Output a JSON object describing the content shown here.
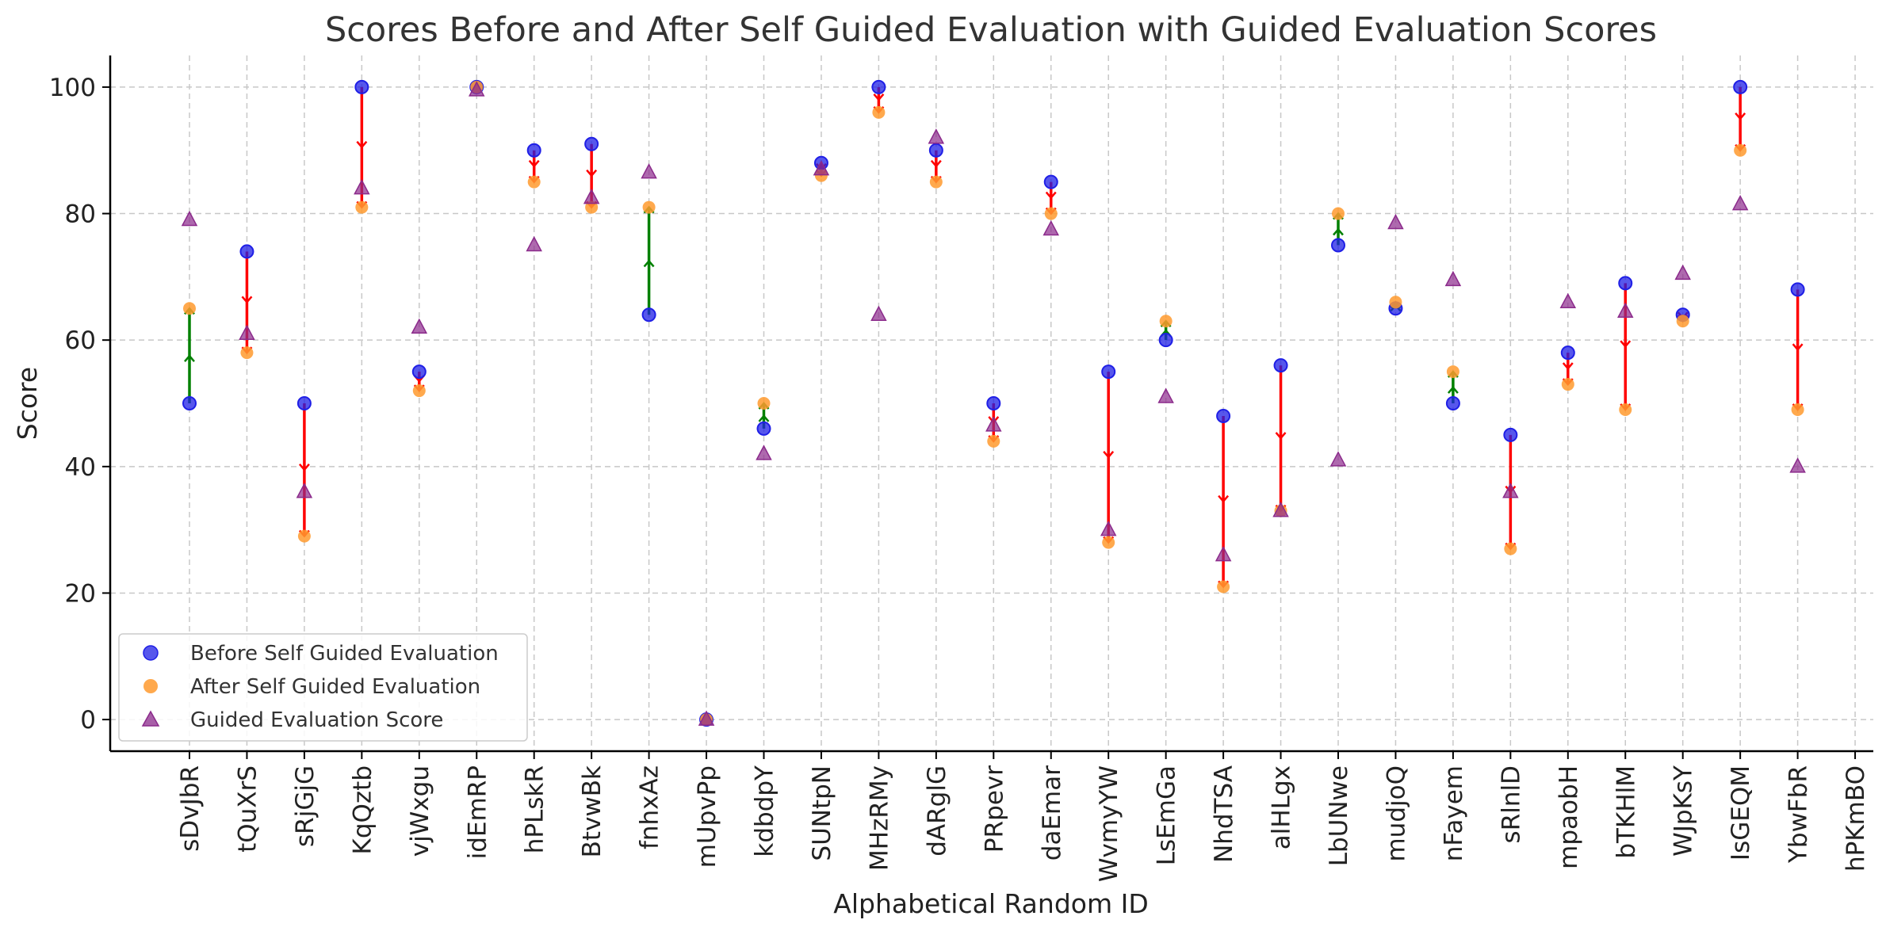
{
  "chart_data": {
    "type": "scatter",
    "title": "Scores Before and After Self Guided Evaluation with Guided Evaluation Scores",
    "xlabel": "Alphabetical Random ID",
    "ylabel": "Score",
    "ylim": [
      -5,
      105
    ],
    "yticks": [
      0,
      20,
      40,
      60,
      80,
      100
    ],
    "grid": true,
    "legend_position": "lower-left",
    "categories": [
      "sDvJbR",
      "tQuXrS",
      "sRjGjG",
      "KqQztb",
      "vjWxgu",
      "idEmRP",
      "hPLskR",
      "BtvwBk",
      "fnhxAz",
      "mUpvPp",
      "kdbdpY",
      "SUNtpN",
      "MHzRMy",
      "dARglG",
      "PRpevr",
      "daEmar",
      "WvmyYW",
      "LsEmGa",
      "NhdTSA",
      "alHLgx",
      "LbUNwe",
      "mudjoQ",
      "nFayem",
      "sRlnlD",
      "mpaobH",
      "bTKHlM",
      "WJpKsY",
      "IsGEQM",
      "YbwFbR",
      "hPKmBO"
    ],
    "series": [
      {
        "name": "Before Self Guided Evaluation",
        "color": "#1f1fe6",
        "marker": "circle",
        "values": [
          50,
          74,
          50,
          100,
          55,
          100,
          90,
          91,
          64,
          0,
          46,
          88,
          100,
          90,
          50,
          85,
          55,
          60,
          48,
          56,
          75,
          65,
          50,
          45,
          58,
          69,
          64,
          100,
          68,
          null
        ]
      },
      {
        "name": "After Self Guided Evaluation",
        "color": "#ff9a2e",
        "marker": "circle",
        "values": [
          65,
          58,
          29,
          81,
          52,
          100,
          85,
          81,
          81,
          0,
          50,
          86,
          96,
          85,
          44,
          80,
          28,
          63,
          21,
          33,
          80,
          66,
          55,
          27,
          53,
          49,
          63,
          90,
          49,
          null
        ]
      },
      {
        "name": "Guided Evaluation Score",
        "color": "#8b2a8b",
        "marker": "triangle",
        "values": [
          79,
          61,
          36,
          84,
          62,
          99.5,
          75,
          82.5,
          86.5,
          0,
          42,
          87,
          64,
          92,
          46.5,
          77.5,
          30,
          51,
          26,
          33,
          41,
          78.5,
          69.5,
          36,
          66,
          64.5,
          70.5,
          81.5,
          40,
          null
        ]
      }
    ],
    "change_colors": {
      "increase": "#008000",
      "decrease": "#ff0000"
    }
  }
}
